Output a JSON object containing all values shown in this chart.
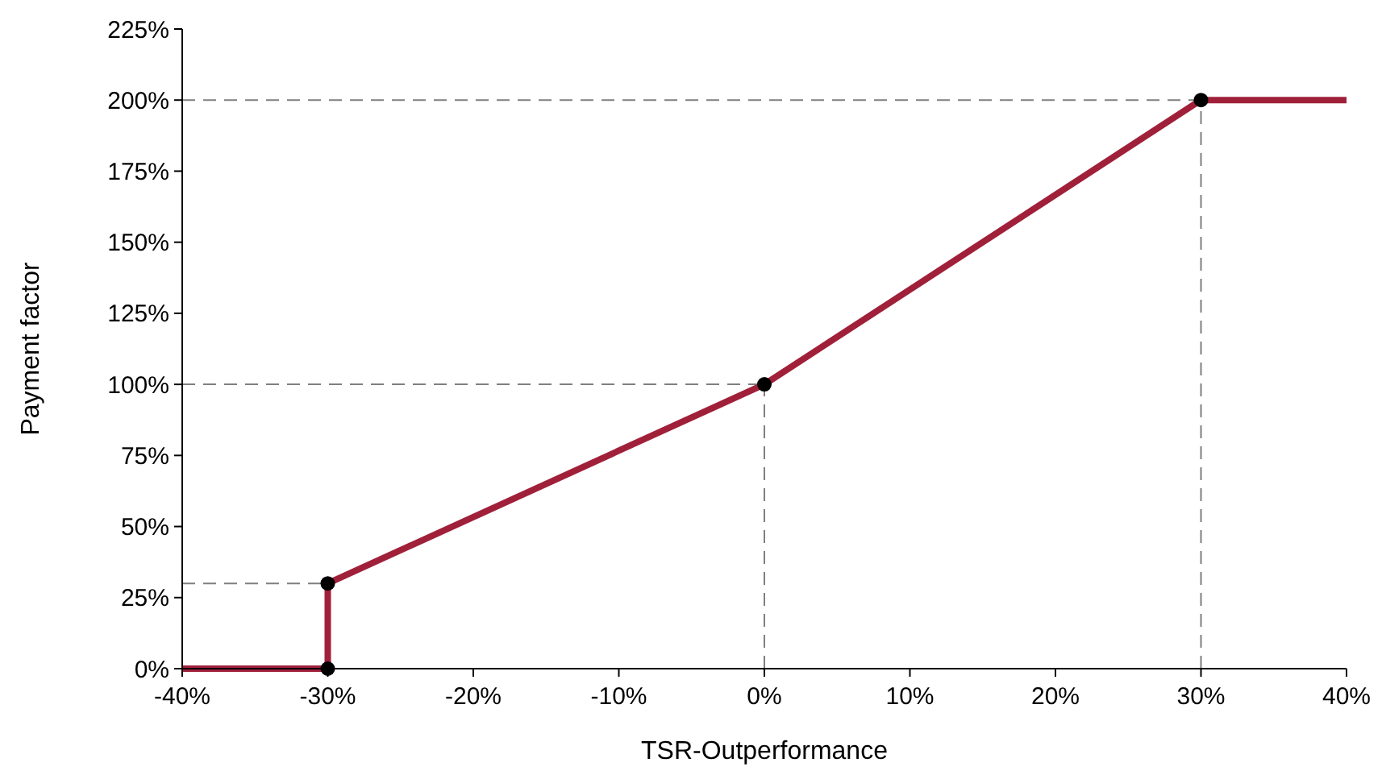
{
  "chart_data": {
    "type": "line",
    "xlabel": "TSR-Outperformance",
    "ylabel": "Payment factor",
    "xlim": [
      -40,
      40
    ],
    "xticks": [
      {
        "value": -40,
        "label": "-40%"
      },
      {
        "value": -30,
        "label": "-30%"
      },
      {
        "value": -20,
        "label": "-20%"
      },
      {
        "value": -10,
        "label": "-10%"
      },
      {
        "value": 0,
        "label": "0%"
      },
      {
        "value": 10,
        "label": "10%"
      },
      {
        "value": 20,
        "label": "20%"
      },
      {
        "value": 30,
        "label": "30%"
      },
      {
        "value": 40,
        "label": "40%"
      }
    ],
    "ylim": [
      0,
      225
    ],
    "yticks": [
      {
        "value": 0,
        "label": "0%"
      },
      {
        "value": 25,
        "label": "25%"
      },
      {
        "value": 50,
        "label": "50%"
      },
      {
        "value": 75,
        "label": "75%"
      },
      {
        "value": 100,
        "label": "100%"
      },
      {
        "value": 125,
        "label": "125%"
      },
      {
        "value": 150,
        "label": "150%"
      },
      {
        "value": 175,
        "label": "175%"
      },
      {
        "value": 200,
        "label": "200%"
      },
      {
        "value": 225,
        "label": "225%"
      }
    ],
    "grid": false,
    "series": [
      {
        "type": "line",
        "x": [
          -40,
          -30
        ],
        "values": [
          30,
          30
        ],
        "color": "#7f7f7f",
        "line_style": "dashed",
        "marker": "none"
      },
      {
        "type": "line",
        "x": [
          -40,
          0
        ],
        "values": [
          100,
          100
        ],
        "color": "#7f7f7f",
        "line_style": "dashed",
        "marker": "none"
      },
      {
        "type": "line",
        "x": [
          -40,
          30
        ],
        "values": [
          200,
          200
        ],
        "color": "#7f7f7f",
        "line_style": "dashed",
        "marker": "none"
      },
      {
        "type": "line",
        "x": [
          0,
          0
        ],
        "values": [
          0,
          100
        ],
        "color": "#7f7f7f",
        "line_style": "dashed",
        "marker": "none"
      },
      {
        "type": "line",
        "x": [
          30,
          30
        ],
        "values": [
          0,
          200
        ],
        "color": "#7f7f7f",
        "line_style": "dashed",
        "marker": "none"
      },
      {
        "x": [
          -40,
          -30,
          -30,
          0,
          30,
          40
        ],
        "values": [
          0,
          0,
          30,
          100,
          200,
          200
        ],
        "color": "#a0203a",
        "line_style": "solid",
        "marker": "none"
      },
      {
        "type": "scatter",
        "x": [
          -30,
          -30,
          0,
          30
        ],
        "values": [
          0,
          30,
          100,
          200
        ],
        "color": "#000000",
        "marker": "circle"
      }
    ]
  }
}
